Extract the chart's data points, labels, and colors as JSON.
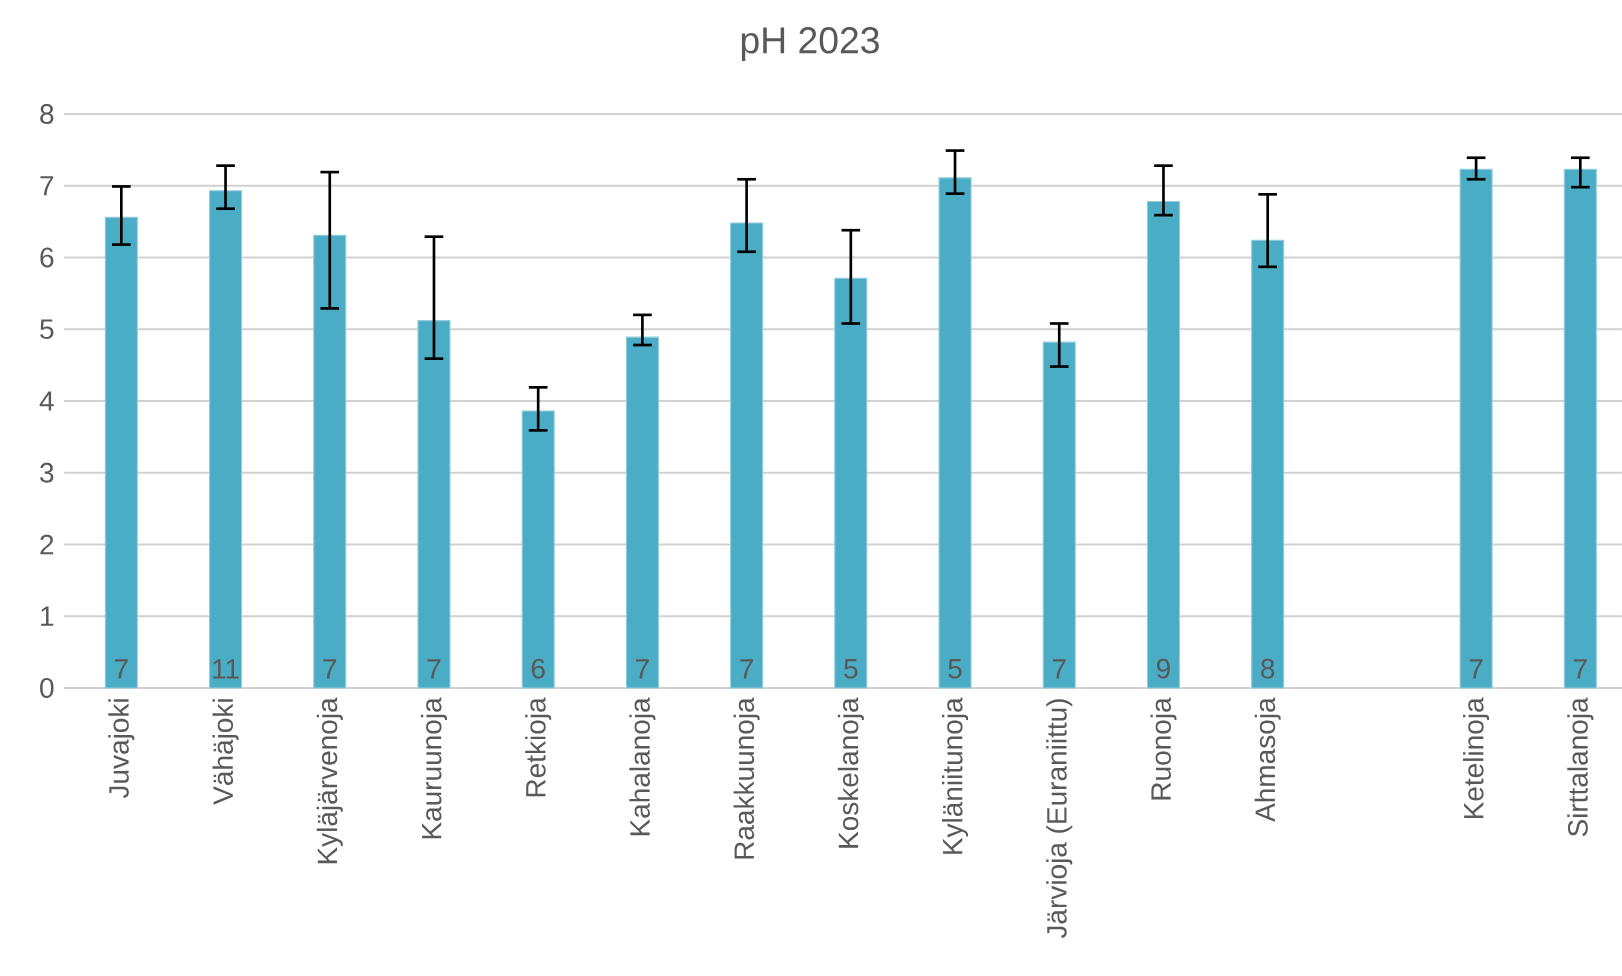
{
  "chart_data": {
    "type": "bar",
    "title": "pH 2023",
    "categories": [
      "Juvajoki",
      "Vähäjoki",
      "Kyläjärvenoja",
      "Kauruunoja",
      "Retkioja",
      "Kahalanoja",
      "Raakkuunoja",
      "Koskelanoja",
      "Kyläniitunoja",
      "Järvioja (Euraniittu)",
      "Ruonoja",
      "Ahmasoja",
      null,
      "Ketelinoja",
      "Sirttalanoja"
    ],
    "values": [
      6.56,
      6.93,
      6.31,
      5.12,
      3.86,
      4.89,
      6.48,
      5.71,
      7.11,
      4.82,
      6.78,
      6.24,
      null,
      7.23,
      7.23
    ],
    "errors": [
      [
        6.18,
        6.99
      ],
      [
        6.68,
        7.28
      ],
      [
        5.29,
        7.19
      ],
      [
        4.59,
        6.29
      ],
      [
        3.59,
        4.19
      ],
      [
        4.78,
        5.2
      ],
      [
        6.08,
        7.09
      ],
      [
        5.08,
        6.38
      ],
      [
        6.89,
        7.49
      ],
      [
        4.48,
        5.08
      ],
      [
        6.59,
        7.28
      ],
      [
        5.87,
        6.88
      ],
      null,
      [
        7.09,
        7.39
      ],
      [
        6.98,
        7.39
      ]
    ],
    "color": "#4bacc6",
    "ylim": [
      0,
      8
    ],
    "yticks": [
      0,
      1,
      2,
      3,
      4,
      5,
      6,
      7,
      8
    ],
    "grid": "y",
    "annotations": [
      "7",
      "11",
      "7",
      "7",
      "6",
      "7",
      "7",
      "5",
      "5",
      "7",
      "9",
      "8",
      "7",
      "7"
    ]
  }
}
